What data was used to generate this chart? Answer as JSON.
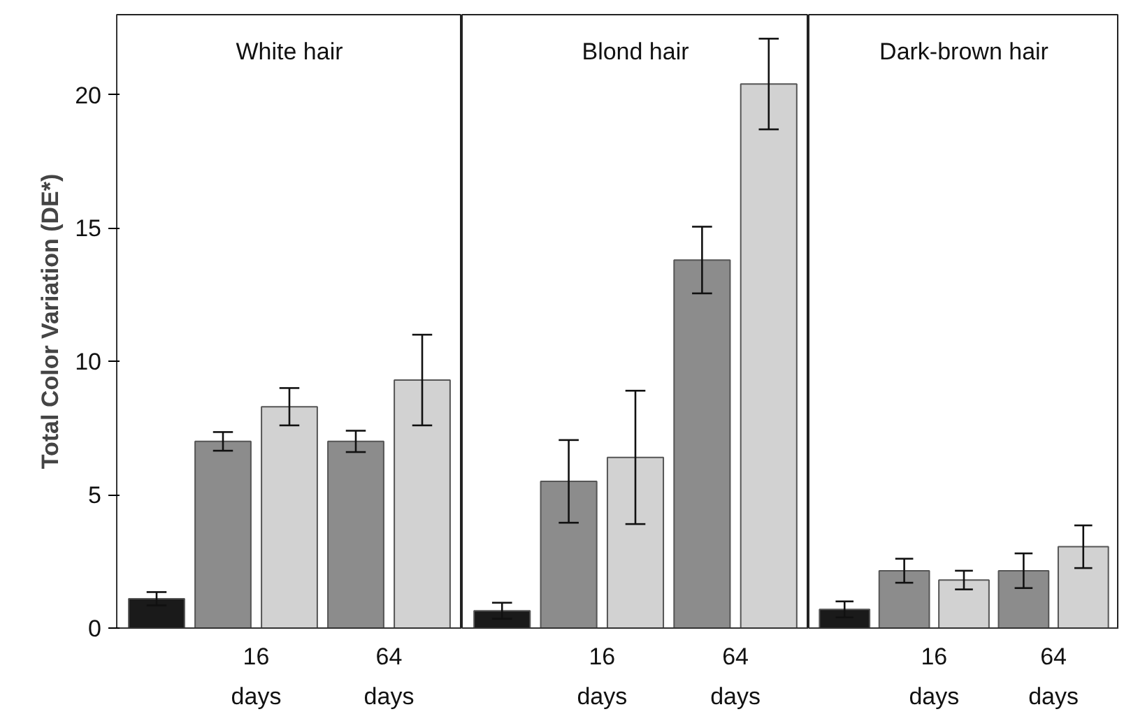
{
  "chart_data": [
    {
      "type": "bar",
      "title": "White hair",
      "ylabel": "Total Color Variation (DE*)",
      "categories": [
        null,
        "16 days",
        "64 days"
      ],
      "ylim": [
        0,
        23
      ],
      "yticks": [
        0,
        5,
        10,
        15,
        20
      ],
      "grid": false,
      "series": [
        {
          "color": "#1a1a1a",
          "values": [
            1.1,
            null,
            null
          ],
          "errors": [
            0.25,
            null,
            null
          ]
        },
        {
          "color": "#8c8c8c",
          "values": [
            null,
            7.0,
            7.0
          ],
          "errors": [
            null,
            0.35,
            0.4
          ]
        },
        {
          "color": "#d2d2d2",
          "values": [
            null,
            8.3,
            9.3
          ],
          "errors": [
            null,
            0.7,
            1.7
          ]
        }
      ]
    },
    {
      "type": "bar",
      "title": "Blond hair",
      "categories": [
        null,
        "16 days",
        "64 days"
      ],
      "ylim": [
        0,
        23
      ],
      "yticks": [
        0,
        5,
        10,
        15,
        20
      ],
      "grid": false,
      "tick_labels": "x",
      "series": [
        {
          "color": "#1a1a1a",
          "values": [
            0.65,
            null,
            null
          ],
          "errors": [
            0.3,
            null,
            null
          ]
        },
        {
          "color": "#8c8c8c",
          "values": [
            null,
            5.5,
            13.8
          ],
          "errors": [
            null,
            1.55,
            1.25
          ]
        },
        {
          "color": "#d2d2d2",
          "values": [
            null,
            6.4,
            20.4
          ],
          "errors": [
            null,
            2.5,
            1.7
          ]
        }
      ]
    },
    {
      "type": "bar",
      "title": "Dark-brown hair",
      "categories": [
        null,
        "16 days",
        "64 days"
      ],
      "ylim": [
        0,
        23
      ],
      "yticks": [
        0,
        5,
        10,
        15,
        20
      ],
      "grid": false,
      "tick_labels": "x",
      "series": [
        {
          "color": "#1a1a1a",
          "values": [
            0.7,
            null,
            null
          ],
          "errors": [
            0.3,
            null,
            null
          ]
        },
        {
          "color": "#8c8c8c",
          "values": [
            null,
            2.15,
            2.15
          ],
          "errors": [
            null,
            0.45,
            0.65
          ]
        },
        {
          "color": "#d2d2d2",
          "values": [
            null,
            1.8,
            3.05
          ],
          "errors": [
            null,
            0.35,
            0.8
          ]
        }
      ]
    }
  ]
}
